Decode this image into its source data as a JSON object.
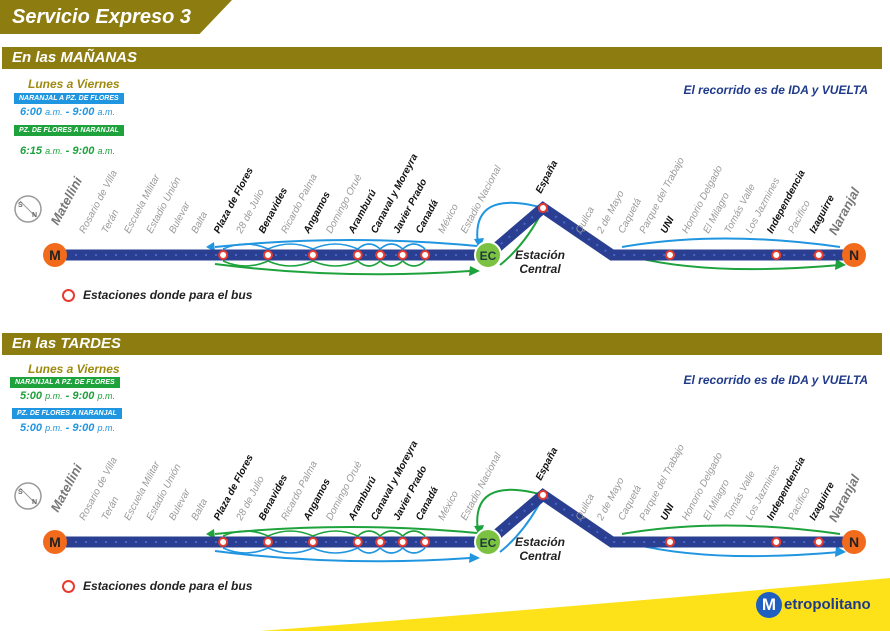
{
  "title": "Servicio Expreso 3",
  "colors": {
    "gold": "#8d7c10",
    "line": "#2a3f91",
    "blue": "#2196e0",
    "green": "#1ea23c",
    "stop": "#e63b2e",
    "terminal": "#f26b1d",
    "central": "#7cc242",
    "yellow": "#fde21a"
  },
  "sections": [
    {
      "header": "En las MAÑANAS",
      "days": "Lunes a Viernes",
      "route1": "NARANJAL A PZ. DE FLORES",
      "time1_start": "6:00",
      "time1_start_ampm": "a.m.",
      "time1_sep": "-",
      "time1_end": "9:00",
      "time1_end_ampm": "a.m.",
      "route2": "PZ. DE FLORES A NARANJAL",
      "time2_start": "6:15",
      "time2_start_ampm": "a.m.",
      "time2_sep": "-",
      "time2_end": "9:00",
      "time2_end_ampm": "a.m.",
      "note": "El recorrido es de IDA y VUELTA",
      "legend": "Estaciones donde para el bus"
    },
    {
      "header": "En las TARDES",
      "days": "Lunes a Viernes",
      "route1": "NARANJAL A PZ. DE FLORES",
      "time1_start": "5:00",
      "time1_start_ampm": "p.m.",
      "time1_sep": "-",
      "time1_end": "9:00",
      "time1_end_ampm": "p.m.",
      "route2": "PZ. DE FLORES A NARANJAL",
      "time2_start": "5:00",
      "time2_start_ampm": "p.m.",
      "time2_sep": "-",
      "time2_end": "9:00",
      "time2_end_ampm": "p.m.",
      "note": "El recorrido es de IDA y VUELTA",
      "legend": "Estaciones donde para el bus"
    }
  ],
  "terminal_m": "M",
  "terminal_n": "N",
  "central_code": "EC",
  "central_label_1": "Estación",
  "central_label_2": "Central",
  "compass_s": "S",
  "compass_n": "N",
  "stations_left": [
    {
      "name": "Matellini",
      "stop": false,
      "big": true
    },
    {
      "name": "Rosario de Villa",
      "stop": false
    },
    {
      "name": "Terán",
      "stop": false
    },
    {
      "name": "Escuela Militar",
      "stop": false
    },
    {
      "name": "Estadio Unión",
      "stop": false
    },
    {
      "name": "Bulevar",
      "stop": false
    },
    {
      "name": "Balta",
      "stop": false
    },
    {
      "name": "Plaza de Flores",
      "stop": true
    },
    {
      "name": "28 de Julio",
      "stop": false
    },
    {
      "name": "Benavides",
      "stop": true
    },
    {
      "name": "Ricardo Palma",
      "stop": false
    },
    {
      "name": "Angamos",
      "stop": true
    },
    {
      "name": "Domingo Orué",
      "stop": false
    },
    {
      "name": "Aramburú",
      "stop": true
    },
    {
      "name": "Canaval y Moreyra",
      "stop": true
    },
    {
      "name": "Javier Prado",
      "stop": true
    },
    {
      "name": "Canadá",
      "stop": true
    },
    {
      "name": "México",
      "stop": false
    },
    {
      "name": "Estadio Nacional",
      "stop": false
    }
  ],
  "station_peak": {
    "name": "España",
    "stop": true
  },
  "stations_right": [
    {
      "name": "Quilca",
      "stop": false
    },
    {
      "name": "2 de Mayo",
      "stop": false
    },
    {
      "name": "Caquetá",
      "stop": false
    },
    {
      "name": "Parque del Trabajo",
      "stop": false
    },
    {
      "name": "UNI",
      "stop": true
    },
    {
      "name": "Honorio Delgado",
      "stop": false
    },
    {
      "name": "El Milagro",
      "stop": false
    },
    {
      "name": "Tomás Valle",
      "stop": false
    },
    {
      "name": "Los Jazmines",
      "stop": false
    },
    {
      "name": "Independencia",
      "stop": true
    },
    {
      "name": "Pacífico",
      "stop": false
    },
    {
      "name": "Izaguirre",
      "stop": true
    },
    {
      "name": "Naranjal",
      "stop": false,
      "big": true
    }
  ],
  "logo_mark": "M",
  "logo_text": "etropolitano"
}
